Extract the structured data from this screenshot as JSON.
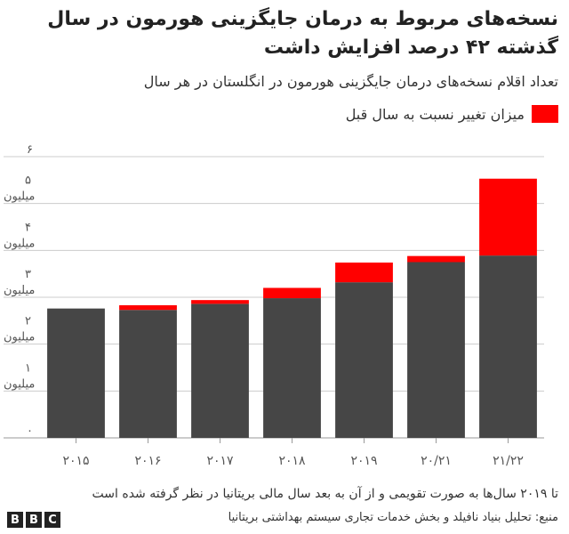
{
  "header": {
    "title": "نسخه‌های مربوط به درمان جایگزینی هورمون در سال گذشته ۴۲ درصد افزایش داشت",
    "subtitle": "تعداد اقلام نسخه‌های درمان جایگزینی هورمون در انگلستان در هر سال"
  },
  "legend": {
    "label": "میزان تغییر نسبت به سال قبل"
  },
  "footer": {
    "note": "تا ۲۰۱۹ سال‌ها به صورت تقویمی و از آن به بعد سال مالی بریتانیا در نظر گرفته شده است",
    "source": "منبع: تحلیل بنیاد نافیلد و بخش خدمات تجاری سیستم بهداشتی بریتانیا",
    "logo": [
      "B",
      "B",
      "C"
    ]
  },
  "colors": {
    "base": "#464646",
    "change": "#ff0000",
    "grid": "#cccccc"
  },
  "chart_data": {
    "type": "bar",
    "stacked": true,
    "categories": [
      "۲۰۱۵",
      "۲۰۱۶",
      "۲۰۱۷",
      "۲۰۱۸",
      "۲۰۱۹",
      "۲۰/۲۱",
      "۲۱/۲۲"
    ],
    "series": [
      {
        "values": [
          2.76,
          2.73,
          2.86,
          2.98,
          3.32,
          3.75,
          3.89
        ]
      },
      {
        "name": "میزان تغییر نسبت به سال قبل",
        "values": [
          0,
          0.1,
          0.08,
          0.22,
          0.42,
          0.13,
          1.64
        ]
      }
    ],
    "ylim": [
      0,
      6
    ],
    "yticks": [
      {
        "value": 0,
        "label": "۰"
      },
      {
        "value": 1,
        "label": "۱ میلیون"
      },
      {
        "value": 2,
        "label": "۲ میلیون"
      },
      {
        "value": 3,
        "label": "۳ میلیون"
      },
      {
        "value": 4,
        "label": "۴ میلیون"
      },
      {
        "value": 5,
        "label": "۵ میلیون"
      },
      {
        "value": 6,
        "label": "۶"
      }
    ],
    "grid": true
  }
}
